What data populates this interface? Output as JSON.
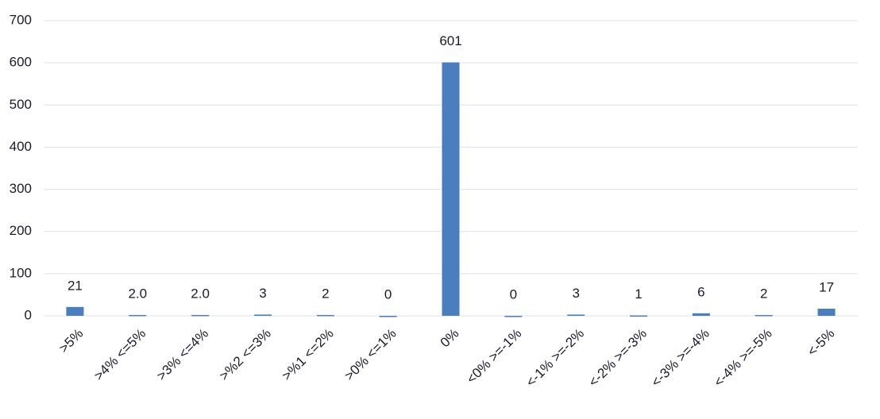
{
  "chart_data": {
    "type": "bar",
    "categories": [
      ">5%",
      ">4% <=5%",
      ">3% <=4%",
      ">%2 <=3%",
      ">%1 <=2%",
      ">0% <=1%",
      "0%",
      "<0% >=-1%",
      "<-1% >=-2%",
      "<-2% >=-3%",
      "<-3% >=-4%",
      "<-4% >=-5%",
      "<-5%"
    ],
    "values": [
      21,
      2,
      2,
      3,
      2,
      0,
      601,
      0,
      3,
      1,
      6,
      2,
      17
    ],
    "value_labels": [
      "21",
      "2.0",
      "2.0",
      "3",
      "2",
      "0",
      "601",
      "0",
      "3",
      "1",
      "6",
      "2",
      "17"
    ],
    "color": "#4a7ebf",
    "ylim": [
      0,
      700
    ],
    "yticks": [
      0,
      100,
      200,
      300,
      400,
      500,
      600,
      700
    ],
    "grid": true
  }
}
